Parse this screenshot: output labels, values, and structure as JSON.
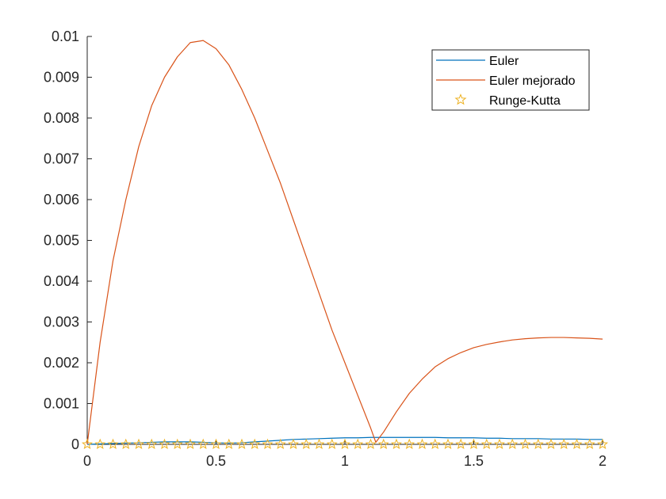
{
  "chart_data": {
    "type": "line",
    "title": "",
    "xlabel": "",
    "ylabel": "",
    "xlim": [
      0,
      2
    ],
    "ylim": [
      0,
      0.01
    ],
    "grid": false,
    "legend_position": "top-right",
    "x_ticks": [
      0,
      0.5,
      1,
      1.5,
      2
    ],
    "x_tick_labels": [
      "0",
      "0.5",
      "1",
      "1.5",
      "2"
    ],
    "y_ticks": [
      0,
      0.001,
      0.002,
      0.003,
      0.004,
      0.005,
      0.006,
      0.007,
      0.008,
      0.009,
      0.01
    ],
    "y_tick_labels": [
      "0",
      "0.001",
      "0.002",
      "0.003",
      "0.004",
      "0.005",
      "0.006",
      "0.007",
      "0.008",
      "0.009",
      "0.01"
    ],
    "x": [
      0,
      0.05,
      0.1,
      0.15,
      0.2,
      0.25,
      0.3,
      0.35,
      0.4,
      0.45,
      0.5,
      0.55,
      0.6,
      0.65,
      0.7,
      0.75,
      0.8,
      0.85,
      0.9,
      0.95,
      1.0,
      1.05,
      1.1,
      1.12,
      1.15,
      1.2,
      1.25,
      1.3,
      1.35,
      1.4,
      1.45,
      1.5,
      1.55,
      1.6,
      1.65,
      1.7,
      1.75,
      1.8,
      1.85,
      1.9,
      1.95,
      2.0
    ],
    "series": [
      {
        "name": "Euler",
        "color": "#0072BD",
        "style": "line",
        "values": [
          0,
          1e-05,
          2e-05,
          3e-05,
          4e-05,
          5e-05,
          6e-05,
          6e-05,
          6e-05,
          5e-05,
          4e-05,
          3e-05,
          4e-05,
          6e-05,
          8e-05,
          0.0001,
          0.00012,
          0.00013,
          0.00014,
          0.00015,
          0.00016,
          0.00016,
          0.00017,
          0.00017,
          0.00017,
          0.00017,
          0.00017,
          0.00017,
          0.00017,
          0.00016,
          0.00016,
          0.00016,
          0.00015,
          0.00015,
          0.00014,
          0.00014,
          0.00014,
          0.00013,
          0.00013,
          0.00013,
          0.00012,
          0.00012
        ]
      },
      {
        "name": "Euler mejorado",
        "color": "#D95319",
        "style": "line",
        "values": [
          0,
          0.0025,
          0.0045,
          0.006,
          0.0073,
          0.0083,
          0.009,
          0.0095,
          0.00985,
          0.0099,
          0.0097,
          0.0093,
          0.0087,
          0.008,
          0.0072,
          0.0064,
          0.0055,
          0.0046,
          0.0037,
          0.0028,
          0.002,
          0.0012,
          0.0004,
          5e-05,
          0.0003,
          0.0008,
          0.00125,
          0.0016,
          0.0019,
          0.0021,
          0.00225,
          0.00237,
          0.00245,
          0.00251,
          0.00256,
          0.00259,
          0.00261,
          0.00262,
          0.00262,
          0.00261,
          0.0026,
          0.00258
        ]
      },
      {
        "name": "Runge-Kutta",
        "color": "#EDB120",
        "style": "star-markers",
        "marker_x": [
          0,
          0.05,
          0.1,
          0.15,
          0.2,
          0.25,
          0.3,
          0.35,
          0.4,
          0.45,
          0.5,
          0.55,
          0.6,
          0.65,
          0.7,
          0.75,
          0.8,
          0.85,
          0.9,
          0.95,
          1.0,
          1.05,
          1.1,
          1.15,
          1.2,
          1.25,
          1.3,
          1.35,
          1.4,
          1.45,
          1.5,
          1.55,
          1.6,
          1.65,
          1.7,
          1.75,
          1.8,
          1.85,
          1.9,
          1.95,
          2.0
        ],
        "marker_values": [
          0,
          0,
          0,
          0,
          0,
          0,
          0,
          0,
          0,
          0,
          0,
          0,
          0,
          0,
          0,
          0,
          0,
          0,
          0,
          0,
          0,
          0,
          0,
          0,
          0,
          0,
          0,
          0,
          0,
          0,
          0,
          0,
          0,
          0,
          0,
          0,
          0,
          0,
          0,
          0,
          0
        ]
      }
    ]
  },
  "legend": {
    "items": [
      {
        "label": "Euler",
        "symbol": "line",
        "color": "#0072BD"
      },
      {
        "label": "Euler mejorado",
        "symbol": "line",
        "color": "#D95319"
      },
      {
        "label": "Runge-Kutta",
        "symbol": "star",
        "color": "#EDB120"
      }
    ]
  }
}
